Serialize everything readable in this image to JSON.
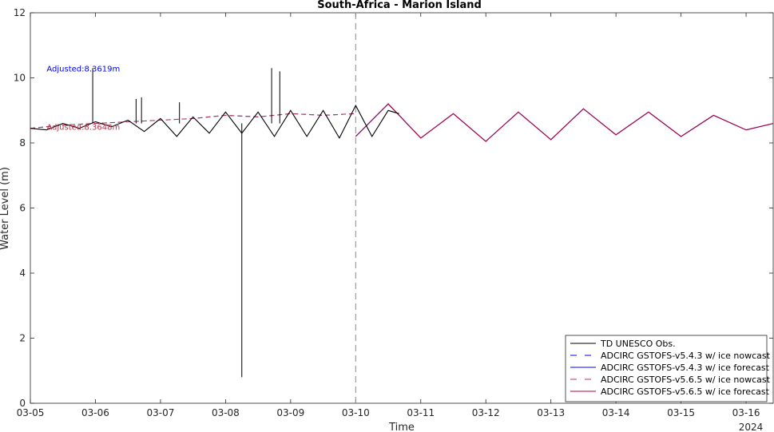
{
  "chart_data": {
    "type": "line",
    "title": "South-Africa - Marion Island",
    "xlabel": "Time",
    "ylabel": "Water Level (m)",
    "year_label": "2024",
    "xlim": [
      "2024-03-05",
      "2024-03-16 10:00"
    ],
    "ylim": [
      0,
      12
    ],
    "x_ticks": [
      "03-05",
      "03-06",
      "03-07",
      "03-08",
      "03-09",
      "03-10",
      "03-11",
      "03-12",
      "03-13",
      "03-14",
      "03-15",
      "03-16"
    ],
    "y_ticks": [
      0,
      2,
      4,
      6,
      8,
      10,
      12
    ],
    "grid": false,
    "legend_position": "bottom-right",
    "nowcast_forecast_divider": "2024-03-10",
    "annotations": [
      {
        "text": "Adjusted:8.3619m",
        "color": "#0000ff",
        "x": "2024-03-05 06:00",
        "y": 10.2
      },
      {
        "text": "Adjusted:8.3648m",
        "color": "#c0334a",
        "x": "2024-03-05 06:00",
        "y": 8.4
      }
    ],
    "series": [
      {
        "name": "TD UNESCO Obs.",
        "color": "#000000",
        "dash": "solid",
        "x": [
          "2024-03-05 00:00",
          "2024-03-05 06:00",
          "2024-03-05 12:00",
          "2024-03-05 18:00",
          "2024-03-06 00:00",
          "2024-03-06 06:00",
          "2024-03-06 12:00",
          "2024-03-06 18:00",
          "2024-03-07 00:00",
          "2024-03-07 06:00",
          "2024-03-07 12:00",
          "2024-03-07 18:00",
          "2024-03-08 00:00",
          "2024-03-08 06:00",
          "2024-03-08 12:00",
          "2024-03-08 18:00",
          "2024-03-09 00:00",
          "2024-03-09 06:00",
          "2024-03-09 12:00",
          "2024-03-09 18:00",
          "2024-03-10 00:00",
          "2024-03-10 06:00",
          "2024-03-10 12:00",
          "2024-03-10 16:00"
        ],
        "values": [
          8.45,
          8.4,
          8.6,
          8.45,
          8.65,
          8.5,
          8.7,
          8.35,
          8.75,
          8.2,
          8.8,
          8.3,
          8.95,
          8.3,
          8.95,
          8.2,
          9.0,
          8.2,
          9.0,
          8.15,
          9.15,
          8.2,
          9.0,
          8.9
        ],
        "spikes": [
          {
            "x": "2024-03-05 23:00",
            "y": 10.3
          },
          {
            "x": "2024-03-06 15:00",
            "y": 9.35
          },
          {
            "x": "2024-03-06 17:00",
            "y": 9.4
          },
          {
            "x": "2024-03-07 07:00",
            "y": 9.25
          },
          {
            "x": "2024-03-08 06:00",
            "y": 0.8
          },
          {
            "x": "2024-03-08 17:00",
            "y": 10.3
          },
          {
            "x": "2024-03-08 20:00",
            "y": 10.2
          }
        ]
      },
      {
        "name": "ADCIRC GSTOFS-v5.4.3 w/ ice nowcast",
        "color": "#0000ff",
        "dash": "dashed",
        "x": [
          "2024-03-05 00:00",
          "2024-03-05 12:00",
          "2024-03-06 00:00",
          "2024-03-06 12:00",
          "2024-03-07 00:00",
          "2024-03-07 12:00",
          "2024-03-08 00:00",
          "2024-03-08 12:00",
          "2024-03-09 00:00",
          "2024-03-09 12:00",
          "2024-03-10 00:00"
        ],
        "values": [
          8.45,
          8.55,
          8.6,
          8.65,
          8.7,
          8.75,
          8.85,
          8.8,
          8.9,
          8.85,
          8.9
        ]
      },
      {
        "name": "ADCIRC GSTOFS-v5.4.3 w/ ice forecast",
        "color": "#0000ff",
        "dash": "solid",
        "x": [
          "2024-03-10 00:00",
          "2024-03-10 12:00",
          "2024-03-11 00:00",
          "2024-03-11 12:00",
          "2024-03-12 00:00",
          "2024-03-12 12:00",
          "2024-03-13 00:00",
          "2024-03-13 12:00",
          "2024-03-14 00:00",
          "2024-03-14 12:00",
          "2024-03-15 00:00",
          "2024-03-15 12:00",
          "2024-03-16 00:00",
          "2024-03-16 10:00"
        ],
        "values": [
          8.2,
          9.2,
          8.15,
          8.9,
          8.05,
          8.95,
          8.1,
          9.05,
          8.25,
          8.95,
          8.2,
          8.85,
          8.4,
          8.6
        ]
      },
      {
        "name": "ADCIRC GSTOFS-v5.6.5 w/ ice nowcast",
        "color": "#c0334a",
        "dash": "dashed",
        "x": [
          "2024-03-05 00:00",
          "2024-03-05 12:00",
          "2024-03-06 00:00",
          "2024-03-06 12:00",
          "2024-03-07 00:00",
          "2024-03-07 12:00",
          "2024-03-08 00:00",
          "2024-03-08 12:00",
          "2024-03-09 00:00",
          "2024-03-09 12:00",
          "2024-03-10 00:00"
        ],
        "values": [
          8.45,
          8.55,
          8.6,
          8.65,
          8.7,
          8.75,
          8.85,
          8.8,
          8.9,
          8.85,
          8.9
        ]
      },
      {
        "name": "ADCIRC GSTOFS-v5.6.5 w/ ice forecast",
        "color": "#b0003a",
        "dash": "solid",
        "x": [
          "2024-03-10 00:00",
          "2024-03-10 12:00",
          "2024-03-11 00:00",
          "2024-03-11 12:00",
          "2024-03-12 00:00",
          "2024-03-12 12:00",
          "2024-03-13 00:00",
          "2024-03-13 12:00",
          "2024-03-14 00:00",
          "2024-03-14 12:00",
          "2024-03-15 00:00",
          "2024-03-15 12:00",
          "2024-03-16 00:00",
          "2024-03-16 10:00"
        ],
        "values": [
          8.2,
          9.2,
          8.15,
          8.9,
          8.05,
          8.95,
          8.1,
          9.05,
          8.25,
          8.95,
          8.2,
          8.85,
          8.4,
          8.6
        ]
      }
    ]
  }
}
